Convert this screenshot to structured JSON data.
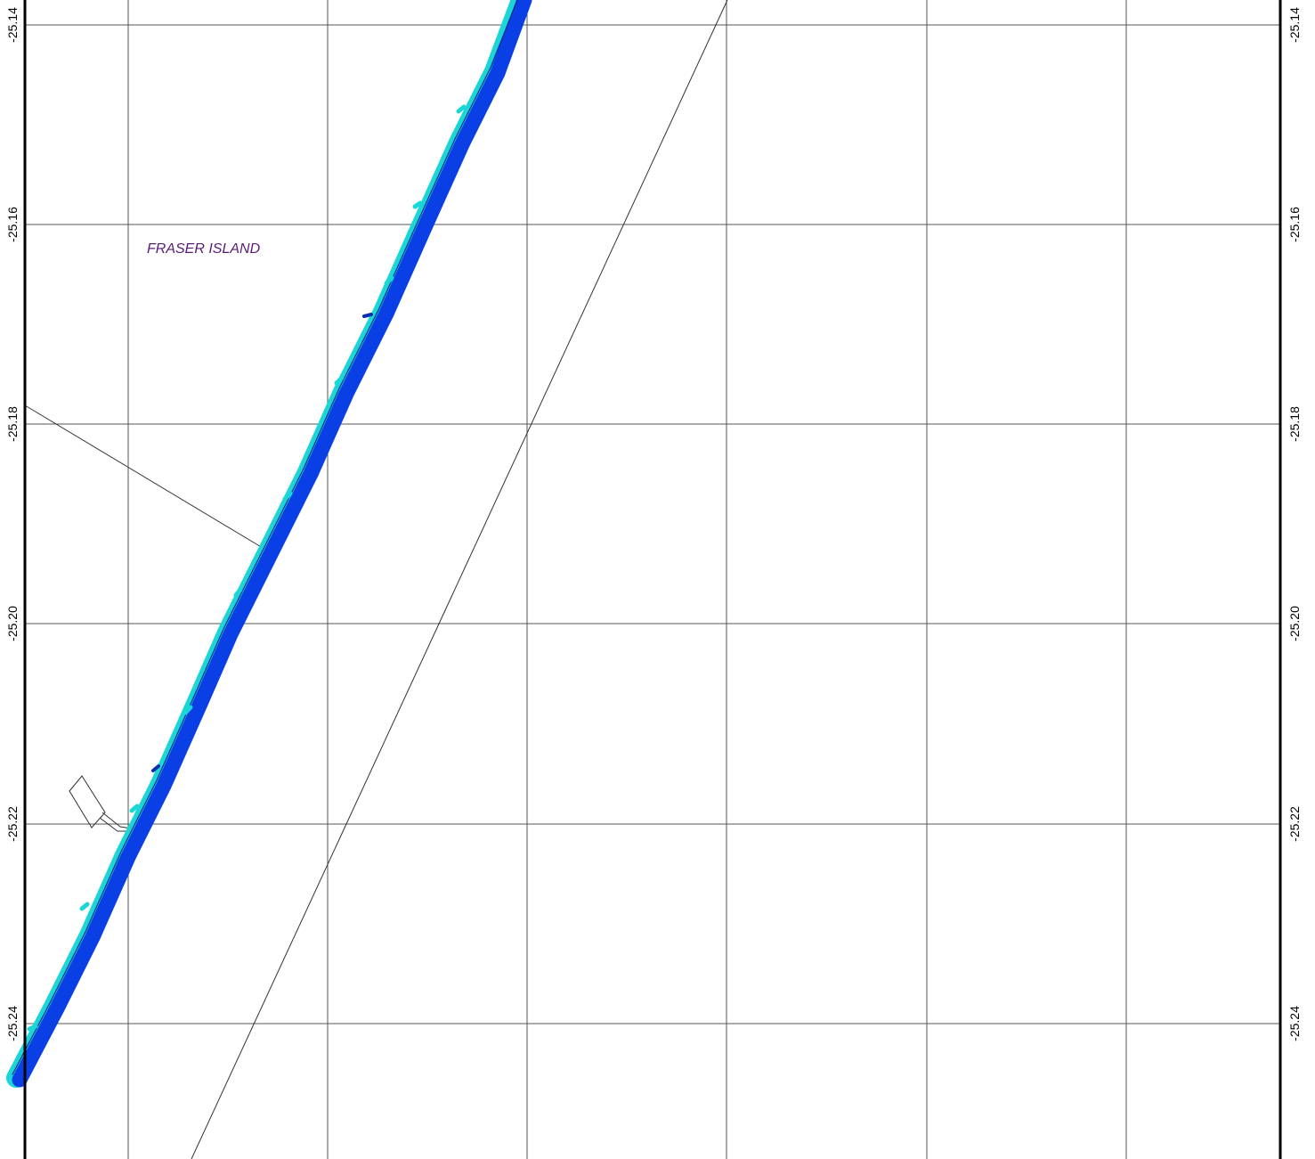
{
  "map": {
    "place_label": "FRASER ISLAND",
    "latitude_labels": [
      "-25.14",
      "-25.16",
      "-25.18",
      "-25.20",
      "-25.22",
      "-25.24"
    ],
    "colors": {
      "frame": "#000000",
      "grid": "#555555",
      "coast_shallow": "#1ad6d6",
      "coast_deep": "#0b3fe6",
      "coast_outline": "#1a2a8a",
      "feature_line": "#333333",
      "place_label": "#5a1a7a"
    }
  }
}
